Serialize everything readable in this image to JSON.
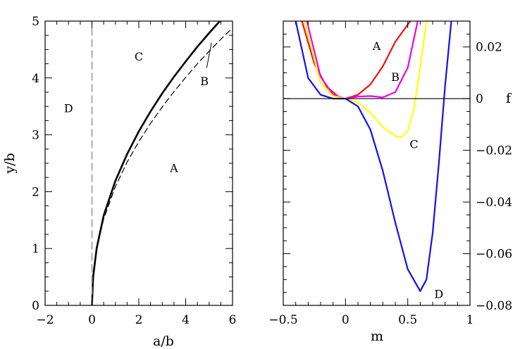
{
  "chart_data": [
    {
      "type": "line",
      "xlabel": "a/b",
      "ylabel": "y/b",
      "xlim": [
        -2,
        6
      ],
      "ylim": [
        0,
        5
      ],
      "xticks": [
        "−2",
        "0",
        "2",
        "4",
        "6"
      ],
      "yticks": [
        "0",
        "1",
        "2",
        "3",
        "4",
        "5"
      ],
      "series": [
        {
          "style": "solid-thick",
          "color": "#000000",
          "x": [
            0,
            0.05,
            0.2,
            0.5,
            1.0,
            1.5,
            2.0,
            2.5,
            3.0,
            3.5,
            4.0,
            4.5,
            5.0,
            5.5
          ],
          "y": [
            0,
            0.5,
            1.0,
            1.58,
            2.19,
            2.66,
            3.06,
            3.41,
            3.73,
            4.02,
            4.29,
            4.55,
            4.79,
            5.02
          ]
        },
        {
          "style": "dashed",
          "color": "#000000",
          "x": [
            0,
            0.05,
            0.2,
            0.5,
            1.0,
            1.5,
            2.0,
            2.5,
            3.0,
            3.5,
            4.0,
            4.5,
            5.0,
            5.5,
            6.0
          ],
          "y": [
            0,
            0.5,
            1.0,
            1.52,
            2.09,
            2.52,
            2.88,
            3.2,
            3.49,
            3.76,
            4.01,
            4.25,
            4.47,
            4.68,
            4.88
          ]
        },
        {
          "style": "dashed-gray",
          "color": "#9a9a9a",
          "x": [
            0,
            0
          ],
          "y": [
            0,
            5
          ]
        }
      ],
      "annotations": [
        {
          "text": "C",
          "x": 2.0,
          "y": 4.38
        },
        {
          "text": "B",
          "x": 4.8,
          "y": 3.95
        },
        {
          "text": "D",
          "x": -1.0,
          "y": 3.47
        },
        {
          "text": "A",
          "x": 3.5,
          "y": 2.42
        }
      ],
      "pointer": {
        "from": [
          4.9,
          4.18
        ],
        "to": [
          5.1,
          4.62
        ]
      }
    },
    {
      "type": "line",
      "xlabel": "m",
      "ylabel": "f",
      "xlim": [
        -0.5,
        1
      ],
      "ylim": [
        -0.08,
        0.03
      ],
      "xticks": [
        "−0.5",
        "0",
        "0.5",
        "1"
      ],
      "yticks": [
        "0.02",
        "0",
        "−0.02",
        "−0.04",
        "−0.06",
        "−0.08"
      ],
      "series": [
        {
          "label": "A",
          "color": "#ee1111",
          "x": [
            -0.35,
            -0.25,
            -0.15,
            -0.05,
            0,
            0.1,
            0.2,
            0.3,
            0.4,
            0.52
          ],
          "y": [
            0.03,
            0.0135,
            0.0045,
            0.0005,
            0,
            0.0015,
            0.0055,
            0.0125,
            0.022,
            0.03
          ]
        },
        {
          "label": "B",
          "color": "#ee00ee",
          "x": [
            -0.31,
            -0.2,
            -0.1,
            0,
            0.1,
            0.2,
            0.3,
            0.4,
            0.5,
            0.58
          ],
          "y": [
            0.03,
            0.0085,
            0.0015,
            0,
            0.0008,
            0.001,
            0.0005,
            0.0025,
            0.012,
            0.03
          ]
        },
        {
          "label": "C",
          "color": "#ffff00",
          "x": [
            -0.33,
            -0.2,
            -0.1,
            0,
            0.1,
            0.2,
            0.3,
            0.4,
            0.45,
            0.5,
            0.55,
            0.6,
            0.65
          ],
          "y": [
            0.03,
            0.006,
            0.001,
            0,
            -0.0015,
            -0.0055,
            -0.011,
            -0.0145,
            -0.015,
            -0.0125,
            -0.004,
            0.012,
            0.03
          ]
        },
        {
          "label": "D",
          "color": "#1111ee",
          "x": [
            -0.4,
            -0.3,
            -0.2,
            -0.1,
            0,
            0.1,
            0.2,
            0.3,
            0.4,
            0.5,
            0.6,
            0.65,
            0.7,
            0.75,
            0.8,
            0.85
          ],
          "y": [
            0.03,
            0.008,
            0.0015,
            0,
            0,
            -0.003,
            -0.012,
            -0.028,
            -0.048,
            -0.066,
            -0.0745,
            -0.07,
            -0.052,
            -0.025,
            0.005,
            0.03
          ]
        },
        {
          "label": "",
          "color": "#000000",
          "x": [
            -0.5,
            1
          ],
          "y": [
            0,
            0
          ]
        }
      ],
      "annotations": [
        {
          "text": "A",
          "x": 0.25,
          "y": 0.0205
        },
        {
          "text": "B",
          "x": 0.4,
          "y": 0.0085
        },
        {
          "text": "C",
          "x": 0.55,
          "y": -0.0175
        },
        {
          "text": "D",
          "x": 0.75,
          "y": -0.0755
        }
      ]
    }
  ]
}
